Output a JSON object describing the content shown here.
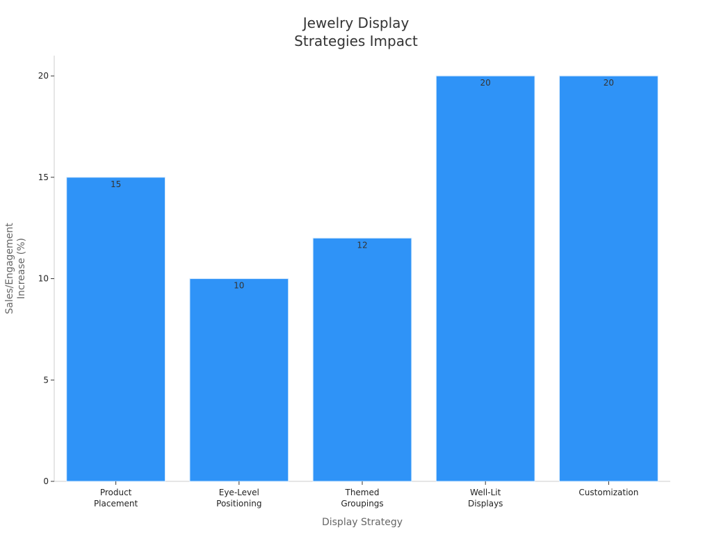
{
  "chart_data": {
    "type": "bar",
    "title": [
      "Jewelry Display",
      "Strategies Impact"
    ],
    "xlabel": "Display Strategy",
    "ylabel": [
      "Sales/Engagement",
      "Increase (%)"
    ],
    "categories": [
      [
        "Product",
        "Placement"
      ],
      [
        "Eye-Level",
        "Positioning"
      ],
      [
        "Themed",
        "Groupings"
      ],
      [
        "Well-Lit",
        "Displays"
      ],
      [
        "Customization"
      ]
    ],
    "values": [
      15,
      10,
      12,
      20,
      20
    ],
    "ylim": [
      0,
      21
    ],
    "yticks": [
      0,
      5,
      10,
      15,
      20
    ],
    "grid": false,
    "colors": {
      "bar": "#2f93f7",
      "bar_edge": "#d9ecfd",
      "axis": "#cccccc"
    }
  }
}
